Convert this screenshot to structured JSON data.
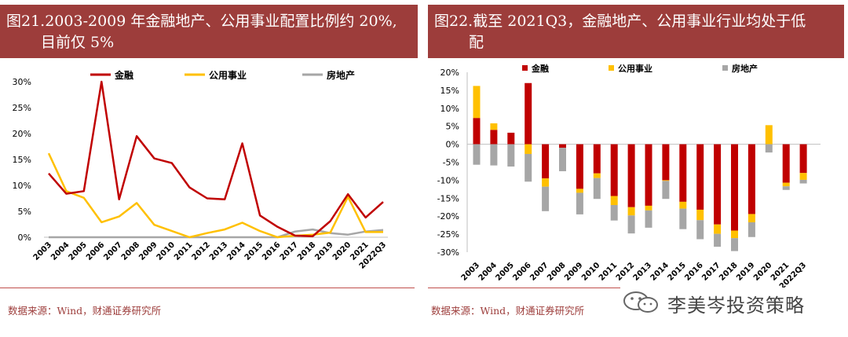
{
  "left": {
    "title_line1": "图21.2003-2009 年金融地产、公用事业配置比例约 20%,",
    "title_line2": "目前仅 5%",
    "source": "数据来源：Wind，财通证券研究所"
  },
  "right": {
    "title_line1": "图22.截至 2021Q3，金融地产、公用事业行业均处于低",
    "title_line2": "配",
    "source": "数据来源：Wind，财通证券研究所"
  },
  "watermark": {
    "text": "李美岑投资策略"
  },
  "colors": {
    "finance": "#c00000",
    "utilities": "#ffc000",
    "realestate": "#a6a6a6",
    "header": "#9d3d3b"
  },
  "chart_data": [
    {
      "type": "line",
      "title": "图21.2003-2009 年金融地产、公用事业配置比例约 20%, 目前仅 5%",
      "categories": [
        "2003",
        "2004",
        "2005",
        "2006",
        "2007",
        "2008",
        "2009",
        "2010",
        "2011",
        "2012",
        "2013",
        "2014",
        "2015",
        "2016",
        "2017",
        "2018",
        "2019",
        "2020",
        "2021",
        "2022Q3"
      ],
      "yticks": [
        "0%",
        "5%",
        "10%",
        "15%",
        "20%",
        "25%",
        "30%"
      ],
      "ylim": [
        0,
        30
      ],
      "legend_position": "top",
      "series": [
        {
          "name": "金融",
          "color": "#c00000",
          "values": [
            12.3,
            8.4,
            8.9,
            30.0,
            7.3,
            19.5,
            15.2,
            14.3,
            9.6,
            7.5,
            7.3,
            18.1,
            4.2,
            2.0,
            0.3,
            0.2,
            3.1,
            8.3,
            3.8,
            6.8
          ]
        },
        {
          "name": "公用事业",
          "color": "#ffc000",
          "values": [
            16.2,
            8.9,
            7.6,
            2.9,
            4.0,
            6.6,
            2.4,
            1.2,
            0.0,
            0.8,
            1.5,
            2.8,
            1.2,
            0.0,
            0.3,
            0.5,
            0.9,
            7.8,
            1.0,
            1.0
          ]
        },
        {
          "name": "房地产",
          "color": "#a6a6a6",
          "values": [
            0.0,
            0.0,
            0.0,
            0.0,
            0.0,
            0.0,
            0.0,
            0.0,
            0.0,
            0.0,
            0.0,
            0.0,
            0.0,
            0.0,
            1.1,
            1.5,
            0.8,
            0.5,
            1.1,
            1.4
          ]
        }
      ]
    },
    {
      "type": "bar",
      "stacked": true,
      "title": "图22.截至 2021Q3，金融地产、公用事业行业均处于低配",
      "categories": [
        "2003",
        "2004",
        "2005",
        "2006",
        "2007",
        "2008",
        "2009",
        "2010",
        "2011",
        "2012",
        "2013",
        "2014",
        "2015",
        "2016",
        "2017",
        "2018",
        "2019",
        "2020",
        "2021",
        "2022Q3"
      ],
      "yticks": [
        "20%",
        "15%",
        "10%",
        "5%",
        "0%",
        "-5%",
        "-10%",
        "-15%",
        "-20%",
        "-25%",
        "-30%"
      ],
      "ylim": [
        -30,
        20
      ],
      "legend_position": "top",
      "series": [
        {
          "name": "金融",
          "color": "#c00000",
          "values": [
            7.3,
            4.0,
            3.2,
            17.0,
            -9.5,
            -1.0,
            -12.4,
            -8.1,
            -14.4,
            -17.5,
            -17.1,
            -10.0,
            -16.0,
            -18.2,
            -22.3,
            -24.0,
            -19.4,
            0,
            -10.7,
            -8.0
          ]
        },
        {
          "name": "公用事业",
          "color": "#ffc000",
          "values": [
            8.9,
            1.8,
            0,
            -2.7,
            -2.3,
            0,
            -1.1,
            -1.3,
            -2.5,
            -2.3,
            -1.3,
            -0.2,
            -1.9,
            -2.9,
            -2.6,
            -2.1,
            -2.3,
            5.3,
            -1.0,
            -1.9
          ]
        },
        {
          "name": "房地产",
          "color": "#a6a6a6",
          "values": [
            -5.7,
            -5.9,
            -6.2,
            -7.7,
            -6.8,
            -6.5,
            -6.0,
            -5.8,
            -4.3,
            -5.0,
            -4.8,
            -5.0,
            -5.7,
            -5.3,
            -3.6,
            -3.6,
            -4.1,
            -2.3,
            -1.0,
            -1.0
          ]
        }
      ]
    }
  ]
}
